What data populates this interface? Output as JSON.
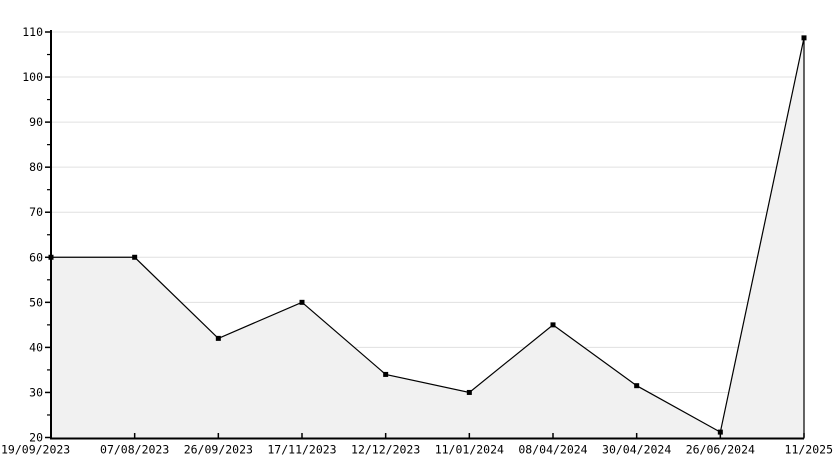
{
  "chart_data": {
    "type": "area",
    "title": "",
    "xlabel": "",
    "ylabel": "",
    "categories": [
      "19/09/2023",
      "07/08/2023",
      "26/09/2023",
      "17/11/2023",
      "12/12/2023",
      "11/01/2024",
      "08/04/2024",
      "30/04/2024",
      "26/06/2024",
      "11/2025"
    ],
    "values": [
      60,
      60,
      42,
      50,
      34,
      30,
      45,
      31.5,
      21.2,
      108.7
    ],
    "ylim": [
      20,
      110
    ],
    "ytick_step": 10,
    "ytick_minor_step": 5,
    "yticks": [
      "20",
      "30",
      "40",
      "50",
      "60",
      "70",
      "80",
      "90",
      "100",
      "110"
    ],
    "grid": "horizontal-major",
    "legend": "none",
    "marker": "square",
    "colors": {
      "line": "#000000",
      "marker": "#000000",
      "fill": "#f1f1f1",
      "grid": "#e0e0e0",
      "axis": "#000000",
      "label": "#000000",
      "background": "#ffffff"
    }
  }
}
